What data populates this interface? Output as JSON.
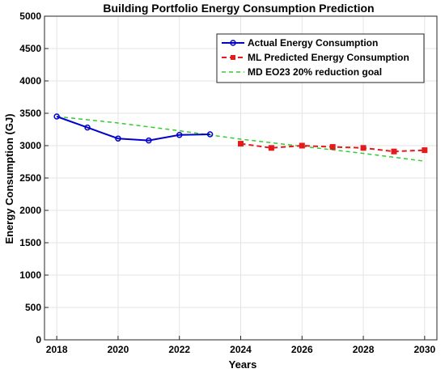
{
  "chart_data": {
    "type": "line",
    "title": "Building Portfolio Energy Consumption Prediction",
    "xlabel": "Years",
    "ylabel": "Energy Consumption (GJ)",
    "xlim": [
      2017.6,
      2030.4
    ],
    "ylim": [
      0,
      5000
    ],
    "xticks": [
      2018,
      2020,
      2022,
      2024,
      2026,
      2028,
      2030
    ],
    "yticks": [
      0,
      500,
      1000,
      1500,
      2000,
      2500,
      3000,
      3500,
      4000,
      4500,
      5000
    ],
    "grid": true,
    "legend_position": "top-right",
    "series": [
      {
        "name": "Actual Energy Consumption",
        "color": "#0000cc",
        "line_style": "solid",
        "marker": "circle",
        "x": [
          2018,
          2019,
          2020,
          2021,
          2022,
          2023
        ],
        "y": [
          3450,
          3280,
          3110,
          3080,
          3165,
          3175
        ]
      },
      {
        "name": "ML Predicted Energy Consumption",
        "color": "#e41a1c",
        "line_style": "dashed",
        "marker": "square",
        "x": [
          2024,
          2025,
          2026,
          2027,
          2028,
          2029,
          2030
        ],
        "y": [
          3030,
          2965,
          3000,
          2980,
          2965,
          2910,
          2930
        ]
      },
      {
        "name": "MD EO23 20% reduction goal",
        "color": "#33cc33",
        "line_style": "dashed",
        "marker": "none",
        "x": [
          2018,
          2020,
          2022,
          2024,
          2026,
          2028,
          2030
        ],
        "y": [
          3450,
          3350,
          3230,
          3100,
          2990,
          2880,
          2760
        ]
      }
    ]
  }
}
